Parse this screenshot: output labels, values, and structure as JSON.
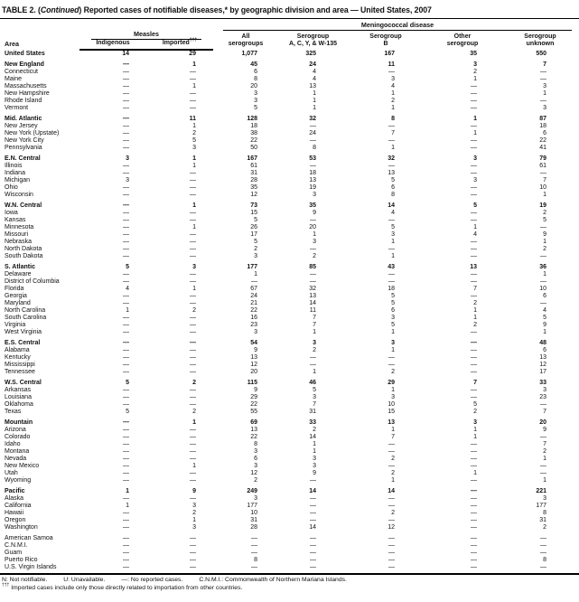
{
  "title": {
    "t1": "TABLE 2. (",
    "t2": "Continued",
    "t3": ") Reported cases of notifiable diseases,* by geographic division and area — United States, 2007"
  },
  "headers": {
    "area": "Area",
    "measles_group": "Measles",
    "mening_group": "Meningococcal disease",
    "c1": {
      "l1": "Indigenous"
    },
    "c2": {
      "l1": "Imported",
      "sup": "†††"
    },
    "c3": {
      "l1": "All",
      "l2": "serogroups"
    },
    "c4": {
      "l1": "Serogroup",
      "l2": "A, C, Y, & W-135"
    },
    "c5": {
      "l1": "Serogroup",
      "l2": "B"
    },
    "c6": {
      "l1": "Other",
      "l2": "serogroup"
    },
    "c7": {
      "l1": "Serogroup",
      "l2": "unknown"
    }
  },
  "table": {
    "rows": [
      {
        "area": "United States",
        "bold": true,
        "gap": false,
        "values": [
          "14",
          "29",
          "1,077",
          "325",
          "167",
          "35",
          "550"
        ]
      },
      {
        "area": "New England",
        "bold": true,
        "gap": true,
        "values": [
          "—",
          "1",
          "45",
          "24",
          "11",
          "3",
          "7"
        ]
      },
      {
        "area": "Connecticut",
        "bold": false,
        "gap": false,
        "values": [
          "—",
          "—",
          "6",
          "4",
          "—",
          "2",
          "—"
        ]
      },
      {
        "area": "Maine",
        "bold": false,
        "gap": false,
        "values": [
          "—",
          "—",
          "8",
          "4",
          "3",
          "1",
          "—"
        ]
      },
      {
        "area": "Massachusetts",
        "bold": false,
        "gap": false,
        "values": [
          "—",
          "1",
          "20",
          "13",
          "4",
          "—",
          "3"
        ]
      },
      {
        "area": "New Hampshire",
        "bold": false,
        "gap": false,
        "values": [
          "—",
          "—",
          "3",
          "1",
          "1",
          "—",
          "1"
        ]
      },
      {
        "area": "Rhode Island",
        "bold": false,
        "gap": false,
        "values": [
          "—",
          "—",
          "3",
          "1",
          "2",
          "—",
          "—"
        ]
      },
      {
        "area": "Vermont",
        "bold": false,
        "gap": false,
        "values": [
          "—",
          "—",
          "5",
          "1",
          "1",
          "—",
          "3"
        ]
      },
      {
        "area": "Mid. Atlantic",
        "bold": true,
        "gap": true,
        "values": [
          "—",
          "11",
          "128",
          "32",
          "8",
          "1",
          "87"
        ]
      },
      {
        "area": "New Jersey",
        "bold": false,
        "gap": false,
        "values": [
          "—",
          "1",
          "18",
          "—",
          "—",
          "—",
          "18"
        ]
      },
      {
        "area": "New York (Upstate)",
        "bold": false,
        "gap": false,
        "values": [
          "—",
          "2",
          "38",
          "24",
          "7",
          "1",
          "6"
        ]
      },
      {
        "area": "New York City",
        "bold": false,
        "gap": false,
        "values": [
          "—",
          "5",
          "22",
          "—",
          "—",
          "—",
          "22"
        ]
      },
      {
        "area": "Pennsylvania",
        "bold": false,
        "gap": false,
        "values": [
          "—",
          "3",
          "50",
          "8",
          "1",
          "—",
          "41"
        ]
      },
      {
        "area": "E.N. Central",
        "bold": true,
        "gap": true,
        "values": [
          "3",
          "1",
          "167",
          "53",
          "32",
          "3",
          "79"
        ]
      },
      {
        "area": "Illinois",
        "bold": false,
        "gap": false,
        "values": [
          "—",
          "1",
          "61",
          "—",
          "—",
          "—",
          "61"
        ]
      },
      {
        "area": "Indiana",
        "bold": false,
        "gap": false,
        "values": [
          "—",
          "—",
          "31",
          "18",
          "13",
          "—",
          "—"
        ]
      },
      {
        "area": "Michigan",
        "bold": false,
        "gap": false,
        "values": [
          "3",
          "—",
          "28",
          "13",
          "5",
          "3",
          "7"
        ]
      },
      {
        "area": "Ohio",
        "bold": false,
        "gap": false,
        "values": [
          "—",
          "—",
          "35",
          "19",
          "6",
          "—",
          "10"
        ]
      },
      {
        "area": "Wisconsin",
        "bold": false,
        "gap": false,
        "values": [
          "—",
          "—",
          "12",
          "3",
          "8",
          "—",
          "1"
        ]
      },
      {
        "area": "W.N. Central",
        "bold": true,
        "gap": true,
        "values": [
          "—",
          "1",
          "73",
          "35",
          "14",
          "5",
          "19"
        ]
      },
      {
        "area": "Iowa",
        "bold": false,
        "gap": false,
        "values": [
          "—",
          "—",
          "15",
          "9",
          "4",
          "—",
          "2"
        ]
      },
      {
        "area": "Kansas",
        "bold": false,
        "gap": false,
        "values": [
          "—",
          "—",
          "5",
          "—",
          "—",
          "—",
          "5"
        ]
      },
      {
        "area": "Minnesota",
        "bold": false,
        "gap": false,
        "values": [
          "—",
          "1",
          "26",
          "20",
          "5",
          "1",
          "—"
        ]
      },
      {
        "area": "Missouri",
        "bold": false,
        "gap": false,
        "values": [
          "—",
          "—",
          "17",
          "1",
          "3",
          "4",
          "9"
        ]
      },
      {
        "area": "Nebraska",
        "bold": false,
        "gap": false,
        "values": [
          "—",
          "—",
          "5",
          "3",
          "1",
          "—",
          "1"
        ]
      },
      {
        "area": "North Dakota",
        "bold": false,
        "gap": false,
        "values": [
          "—",
          "—",
          "2",
          "—",
          "—",
          "—",
          "2"
        ]
      },
      {
        "area": "South Dakota",
        "bold": false,
        "gap": false,
        "values": [
          "—",
          "—",
          "3",
          "2",
          "1",
          "—",
          "—"
        ]
      },
      {
        "area": "S. Atlantic",
        "bold": true,
        "gap": true,
        "values": [
          "5",
          "3",
          "177",
          "85",
          "43",
          "13",
          "36"
        ]
      },
      {
        "area": "Delaware",
        "bold": false,
        "gap": false,
        "values": [
          "—",
          "—",
          "1",
          "—",
          "—",
          "—",
          "1"
        ]
      },
      {
        "area": "District of Columbia",
        "bold": false,
        "gap": false,
        "values": [
          "—",
          "—",
          "—",
          "—",
          "—",
          "—",
          "—"
        ]
      },
      {
        "area": "Florida",
        "bold": false,
        "gap": false,
        "values": [
          "4",
          "1",
          "67",
          "32",
          "18",
          "7",
          "10"
        ]
      },
      {
        "area": "Georgia",
        "bold": false,
        "gap": false,
        "values": [
          "—",
          "—",
          "24",
          "13",
          "5",
          "—",
          "6"
        ]
      },
      {
        "area": "Maryland",
        "bold": false,
        "gap": false,
        "values": [
          "—",
          "—",
          "21",
          "14",
          "5",
          "2",
          "—"
        ]
      },
      {
        "area": "North Carolina",
        "bold": false,
        "gap": false,
        "values": [
          "1",
          "2",
          "22",
          "11",
          "6",
          "1",
          "4"
        ]
      },
      {
        "area": "South Carolina",
        "bold": false,
        "gap": false,
        "values": [
          "—",
          "—",
          "16",
          "7",
          "3",
          "1",
          "5"
        ]
      },
      {
        "area": "Virginia",
        "bold": false,
        "gap": false,
        "values": [
          "—",
          "—",
          "23",
          "7",
          "5",
          "2",
          "9"
        ]
      },
      {
        "area": "West Virginia",
        "bold": false,
        "gap": false,
        "values": [
          "—",
          "—",
          "3",
          "1",
          "1",
          "—",
          "1"
        ]
      },
      {
        "area": "E.S. Central",
        "bold": true,
        "gap": true,
        "values": [
          "—",
          "—",
          "54",
          "3",
          "3",
          "—",
          "48"
        ]
      },
      {
        "area": "Alabama",
        "bold": false,
        "gap": false,
        "values": [
          "—",
          "—",
          "9",
          "2",
          "1",
          "—",
          "6"
        ]
      },
      {
        "area": "Kentucky",
        "bold": false,
        "gap": false,
        "values": [
          "—",
          "—",
          "13",
          "—",
          "—",
          "—",
          "13"
        ]
      },
      {
        "area": "Mississippi",
        "bold": false,
        "gap": false,
        "values": [
          "—",
          "—",
          "12",
          "—",
          "—",
          "—",
          "12"
        ]
      },
      {
        "area": "Tennessee",
        "bold": false,
        "gap": false,
        "values": [
          "—",
          "—",
          "20",
          "1",
          "2",
          "—",
          "17"
        ]
      },
      {
        "area": "W.S. Central",
        "bold": true,
        "gap": true,
        "values": [
          "5",
          "2",
          "115",
          "46",
          "29",
          "7",
          "33"
        ]
      },
      {
        "area": "Arkansas",
        "bold": false,
        "gap": false,
        "values": [
          "—",
          "—",
          "9",
          "5",
          "1",
          "—",
          "3"
        ]
      },
      {
        "area": "Louisiana",
        "bold": false,
        "gap": false,
        "values": [
          "—",
          "—",
          "29",
          "3",
          "3",
          "—",
          "23"
        ]
      },
      {
        "area": "Oklahoma",
        "bold": false,
        "gap": false,
        "values": [
          "—",
          "—",
          "22",
          "7",
          "10",
          "5",
          "—"
        ]
      },
      {
        "area": "Texas",
        "bold": false,
        "gap": false,
        "values": [
          "5",
          "2",
          "55",
          "31",
          "15",
          "2",
          "7"
        ]
      },
      {
        "area": "Mountain",
        "bold": true,
        "gap": true,
        "values": [
          "—",
          "1",
          "69",
          "33",
          "13",
          "3",
          "20"
        ]
      },
      {
        "area": "Arizona",
        "bold": false,
        "gap": false,
        "values": [
          "—",
          "—",
          "13",
          "2",
          "1",
          "1",
          "9"
        ]
      },
      {
        "area": "Colorado",
        "bold": false,
        "gap": false,
        "values": [
          "—",
          "—",
          "22",
          "14",
          "7",
          "1",
          "—"
        ]
      },
      {
        "area": "Idaho",
        "bold": false,
        "gap": false,
        "values": [
          "—",
          "—",
          "8",
          "1",
          "—",
          "—",
          "7"
        ]
      },
      {
        "area": "Montana",
        "bold": false,
        "gap": false,
        "values": [
          "—",
          "—",
          "3",
          "1",
          "—",
          "—",
          "2"
        ]
      },
      {
        "area": "Nevada",
        "bold": false,
        "gap": false,
        "values": [
          "—",
          "—",
          "6",
          "3",
          "2",
          "—",
          "1"
        ]
      },
      {
        "area": "New Mexico",
        "bold": false,
        "gap": false,
        "values": [
          "—",
          "1",
          "3",
          "3",
          "—",
          "—",
          "—"
        ]
      },
      {
        "area": "Utah",
        "bold": false,
        "gap": false,
        "values": [
          "—",
          "—",
          "12",
          "9",
          "2",
          "1",
          "—"
        ]
      },
      {
        "area": "Wyoming",
        "bold": false,
        "gap": false,
        "values": [
          "—",
          "—",
          "2",
          "—",
          "1",
          "—",
          "1"
        ]
      },
      {
        "area": "Pacific",
        "bold": true,
        "gap": true,
        "values": [
          "1",
          "9",
          "249",
          "14",
          "14",
          "—",
          "221"
        ]
      },
      {
        "area": "Alaska",
        "bold": false,
        "gap": false,
        "values": [
          "—",
          "—",
          "3",
          "—",
          "—",
          "—",
          "3"
        ]
      },
      {
        "area": "California",
        "bold": false,
        "gap": false,
        "values": [
          "1",
          "3",
          "177",
          "—",
          "—",
          "—",
          "177"
        ]
      },
      {
        "area": "Hawaii",
        "bold": false,
        "gap": false,
        "values": [
          "—",
          "2",
          "10",
          "—",
          "2",
          "—",
          "8"
        ]
      },
      {
        "area": "Oregon",
        "bold": false,
        "gap": false,
        "values": [
          "—",
          "1",
          "31",
          "—",
          "—",
          "—",
          "31"
        ]
      },
      {
        "area": "Washington",
        "bold": false,
        "gap": false,
        "values": [
          "—",
          "3",
          "28",
          "14",
          "12",
          "—",
          "2"
        ]
      },
      {
        "area": "American Samoa",
        "bold": false,
        "gap": true,
        "values": [
          "—",
          "—",
          "—",
          "—",
          "—",
          "—",
          "—"
        ]
      },
      {
        "area": "C.N.M.I.",
        "bold": false,
        "gap": false,
        "values": [
          "—",
          "—",
          "—",
          "—",
          "—",
          "—",
          "—"
        ]
      },
      {
        "area": "Guam",
        "bold": false,
        "gap": false,
        "values": [
          "—",
          "—",
          "—",
          "—",
          "—",
          "—",
          "—"
        ]
      },
      {
        "area": "Puerto Rico",
        "bold": false,
        "gap": false,
        "values": [
          "—",
          "—",
          "8",
          "—",
          "—",
          "—",
          "8"
        ]
      },
      {
        "area": "U.S. Virgin Islands",
        "bold": false,
        "gap": false,
        "values": [
          "—",
          "—",
          "—",
          "—",
          "—",
          "—",
          "—"
        ]
      }
    ]
  },
  "footnotes": {
    "line1": [
      "N: Not notifiable.",
      "U: Unavailable.",
      "—: No reported cases.",
      "C.N.M.I.: Commonwealth of Northern Mariana Islands."
    ],
    "line2_marker": "†††",
    "line2_text": " Imported cases include only those directly related to importation from other countries."
  }
}
